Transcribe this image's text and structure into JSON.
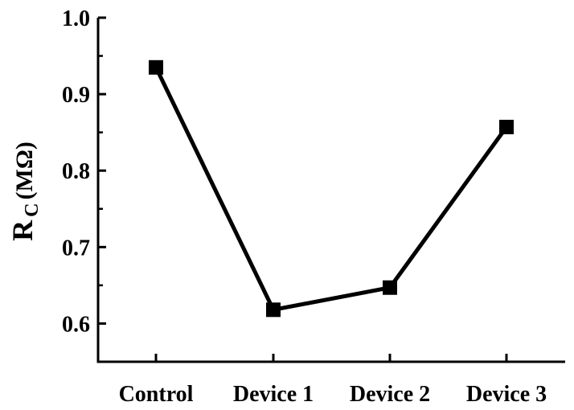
{
  "chart_data": {
    "type": "line",
    "title": "",
    "xlabel": "",
    "ylabel": {
      "main": "R",
      "subscript": "C",
      "unit": " (MΩ)"
    },
    "categories": [
      "Control",
      "Device 1",
      "Device 2",
      "Device 3"
    ],
    "series": [
      {
        "values": [
          0.935,
          0.618,
          0.647,
          0.857
        ],
        "marker": "square",
        "color": "#000000"
      }
    ],
    "ylim": [
      0.55,
      1.0
    ],
    "yticks": [
      "1.0",
      "0.9",
      "0.8",
      "0.7",
      "0.6"
    ],
    "ytick_values": [
      1.0,
      0.9,
      0.8,
      0.7,
      0.6
    ],
    "y_minor_ticks": [
      0.95,
      0.85,
      0.75,
      0.65
    ],
    "grid": false,
    "legend": "none"
  }
}
